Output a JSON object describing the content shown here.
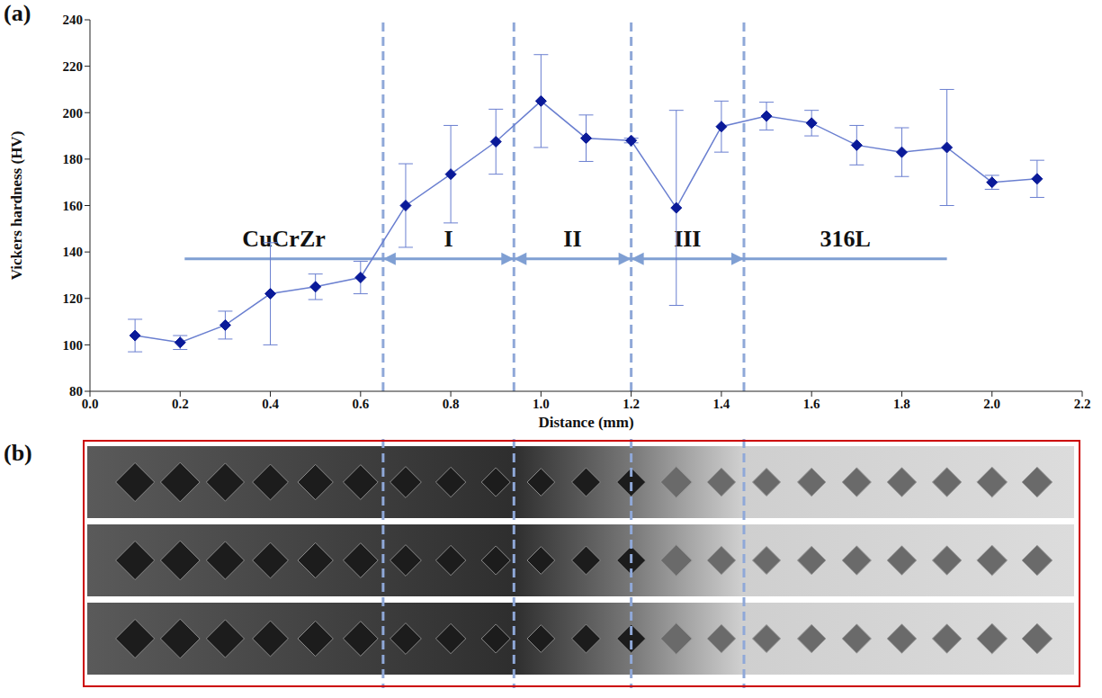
{
  "chart_data": {
    "type": "line",
    "panel_labels": [
      "(a)",
      "(b)"
    ],
    "x_label": "Distance (mm)",
    "y_label": "Vickers hardness (HV)",
    "x": [
      0.1,
      0.2,
      0.3,
      0.4,
      0.5,
      0.6,
      0.7,
      0.8,
      0.9,
      1.0,
      1.1,
      1.2,
      1.3,
      1.4,
      1.5,
      1.6,
      1.7,
      1.8,
      1.9,
      2.0,
      2.1
    ],
    "series": [
      {
        "name": "Vickers hardness",
        "color": "#0a1a99",
        "line_color": "#6a7fd0",
        "marker": "diamond",
        "values": [
          104,
          101,
          108.5,
          122,
          125,
          129,
          160,
          173.5,
          187.5,
          205,
          189,
          188,
          159,
          194,
          198.5,
          195.5,
          186,
          183,
          185,
          170,
          171.5
        ],
        "errors": [
          7,
          3,
          6,
          22,
          5.5,
          7,
          18,
          21,
          14,
          20,
          10,
          1,
          42,
          11,
          6,
          5.5,
          8.5,
          10.5,
          25,
          3,
          8
        ]
      }
    ],
    "xlim": [
      0,
      2.2
    ],
    "xticks": [
      {
        "value": 0,
        "label": "0.0"
      },
      {
        "value": 0.2,
        "label": "0.2"
      },
      {
        "value": 0.4,
        "label": "0.4"
      },
      {
        "value": 0.6,
        "label": "0.6"
      },
      {
        "value": 0.8,
        "label": "0.8"
      },
      {
        "value": 1,
        "label": "1.0"
      },
      {
        "value": 1.2,
        "label": "1.2"
      },
      {
        "value": 1.4,
        "label": "1.4"
      },
      {
        "value": 1.6,
        "label": "1.6"
      },
      {
        "value": 1.8,
        "label": "1.8"
      },
      {
        "value": 2,
        "label": "2.0"
      },
      {
        "value": 2.2,
        "label": "2.2"
      }
    ],
    "ylim": [
      80,
      240
    ],
    "yticks": [
      80,
      100,
      120,
      140,
      160,
      180,
      200,
      220,
      240
    ],
    "grid": false,
    "boundaries": [
      0.65,
      0.94,
      1.2,
      1.45
    ],
    "boundary_color": "#8fa8d8",
    "regions": [
      {
        "text": "CuCrZr",
        "x_start": 0.21,
        "x_end": 0.65,
        "y": 137,
        "arrows": false
      },
      {
        "text": "I",
        "x_start": 0.65,
        "x_end": 0.94,
        "y": 137,
        "arrows": true
      },
      {
        "text": "II",
        "x_start": 0.94,
        "x_end": 1.2,
        "y": 137,
        "arrows": true
      },
      {
        "text": "III",
        "x_start": 1.2,
        "x_end": 1.45,
        "y": 137,
        "arrows": true
      },
      {
        "text": "316L",
        "x_start": 1.45,
        "x_end": 1.9,
        "y": 137,
        "arrows": false
      }
    ]
  }
}
